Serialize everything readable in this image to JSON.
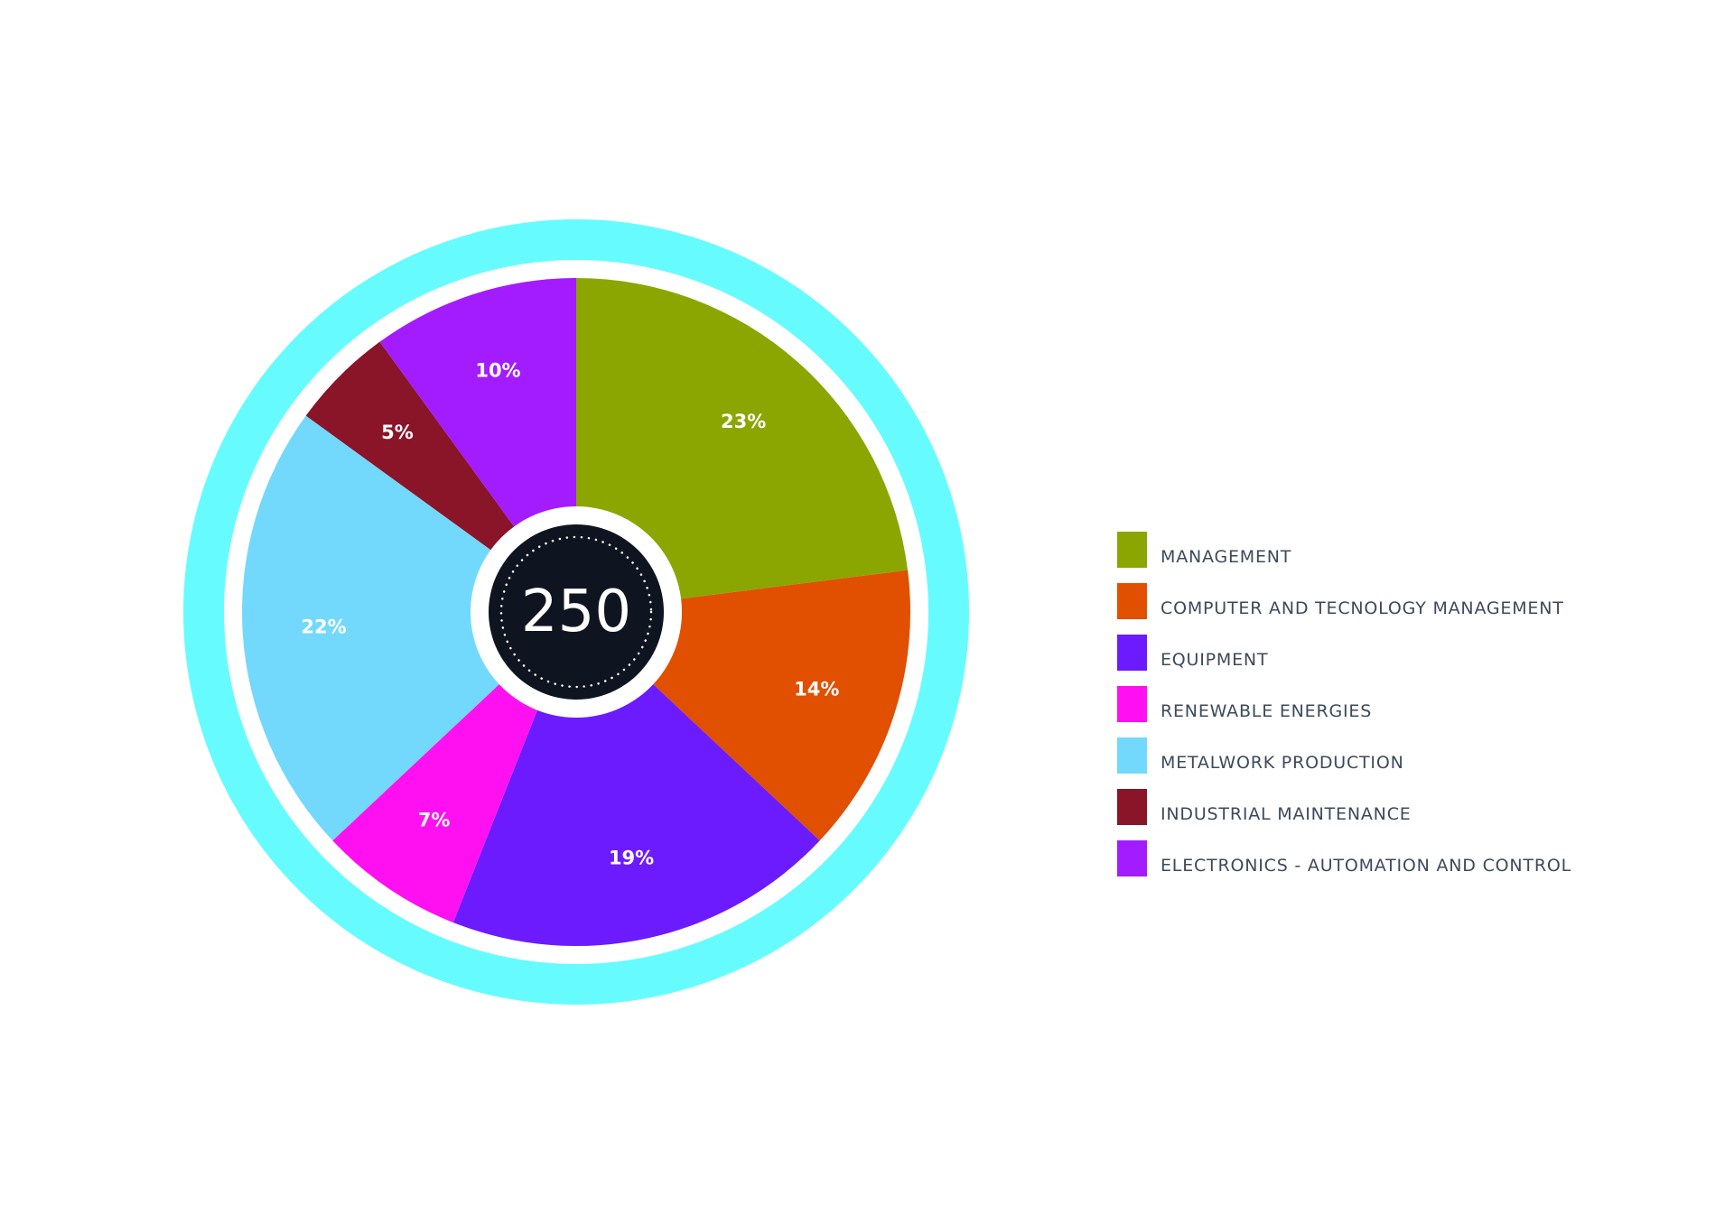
{
  "chart_data": {
    "type": "pie",
    "categories": [
      "MANAGEMENT",
      "COMPUTER AND TECNOLOGY MANAGEMENT",
      "EQUIPMENT",
      "RENEWABLE ENERGIES",
      "METALWORK PRODUCTION",
      "INDUSTRIAL MAINTENANCE",
      "ELECTRONICS - AUTOMATION AND CONTROL"
    ],
    "values": [
      23,
      14,
      19,
      7,
      22,
      5,
      10
    ],
    "value_labels": [
      "23%",
      "14%",
      "19%",
      "7%",
      "22%",
      "5%",
      "10%"
    ],
    "colors": [
      "#8ba600",
      "#e05000",
      "#6c1bff",
      "#ff10f0",
      "#72d9fc",
      "#8a1428",
      "#a31cff"
    ],
    "center_total": "250",
    "legend_placement": "right",
    "outer_ring_color": "#66fcff",
    "center_color": "#0f1520"
  }
}
